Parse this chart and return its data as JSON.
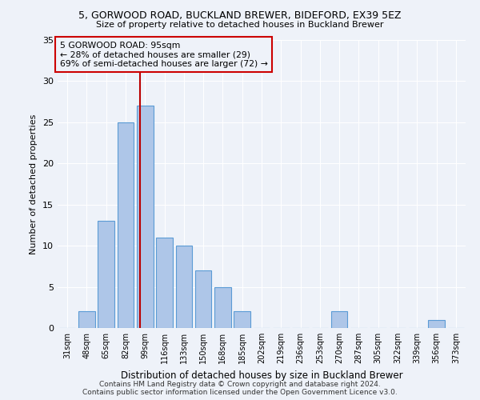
{
  "title1": "5, GORWOOD ROAD, BUCKLAND BREWER, BIDEFORD, EX39 5EZ",
  "title2": "Size of property relative to detached houses in Buckland Brewer",
  "xlabel": "Distribution of detached houses by size in Buckland Brewer",
  "ylabel": "Number of detached properties",
  "categories": [
    "31sqm",
    "48sqm",
    "65sqm",
    "82sqm",
    "99sqm",
    "116sqm",
    "133sqm",
    "150sqm",
    "168sqm",
    "185sqm",
    "202sqm",
    "219sqm",
    "236sqm",
    "253sqm",
    "270sqm",
    "287sqm",
    "305sqm",
    "322sqm",
    "339sqm",
    "356sqm",
    "373sqm"
  ],
  "values": [
    0,
    2,
    13,
    25,
    27,
    11,
    10,
    7,
    5,
    2,
    0,
    0,
    0,
    0,
    2,
    0,
    0,
    0,
    0,
    1,
    0
  ],
  "bar_color": "#aec6e8",
  "bar_edge_color": "#5b9bd5",
  "red_line_x": 3.76,
  "red_line_label1": "5 GORWOOD ROAD: 95sqm",
  "red_line_label2": "← 28% of detached houses are smaller (29)",
  "red_line_label3": "69% of semi-detached houses are larger (72) →",
  "annotation_box_color": "#cc0000",
  "ylim": [
    0,
    35
  ],
  "yticks": [
    0,
    5,
    10,
    15,
    20,
    25,
    30,
    35
  ],
  "footer1": "Contains HM Land Registry data © Crown copyright and database right 2024.",
  "footer2": "Contains public sector information licensed under the Open Government Licence v3.0.",
  "bg_color": "#eef2f9",
  "grid_color": "#ffffff"
}
